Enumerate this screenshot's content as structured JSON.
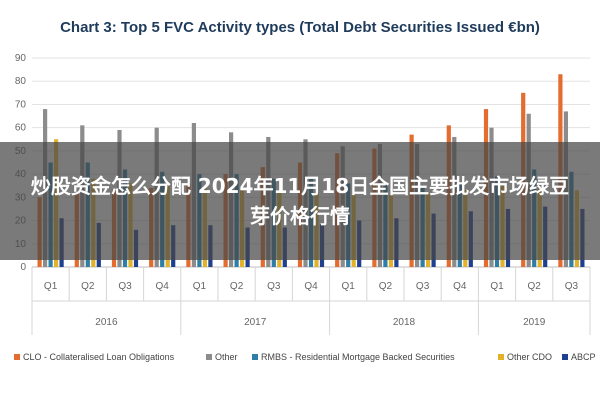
{
  "chart_data": {
    "type": "bar",
    "title": "Chart 3: Top 5 FVC Activity types (Total Debt Securities Issued €bn)",
    "ylim": [
      0,
      90
    ],
    "yticks": [
      0,
      10,
      20,
      30,
      40,
      50,
      60,
      70,
      80,
      90
    ],
    "categories": [
      "Q1",
      "Q2",
      "Q3",
      "Q4",
      "Q1",
      "Q2",
      "Q3",
      "Q4",
      "Q1",
      "Q2",
      "Q3",
      "Q4",
      "Q1",
      "Q2",
      "Q3"
    ],
    "years": [
      {
        "label": "2016",
        "count": 4
      },
      {
        "label": "2017",
        "count": 4
      },
      {
        "label": "2018",
        "count": 4
      },
      {
        "label": "2019",
        "count": 3
      }
    ],
    "series": [
      {
        "name": "CLO - Collateralised Loan Obligations",
        "color": "#e46c2e",
        "values": [
          30,
          32,
          33,
          34,
          36,
          40,
          43,
          45,
          49,
          51,
          57,
          61,
          68,
          75,
          83
        ]
      },
      {
        "name": "Other",
        "color": "#8c8c8c",
        "values": [
          68,
          61,
          59,
          60,
          62,
          58,
          56,
          55,
          52,
          53,
          53,
          56,
          60,
          66,
          67
        ]
      },
      {
        "name": "RMBS - Residential Mortgage Backed Securities",
        "color": "#2e7ea6",
        "values": [
          45,
          45,
          42,
          41,
          40,
          40,
          38,
          38,
          36,
          36,
          35,
          36,
          39,
          42,
          41
        ]
      },
      {
        "name": "Other CDO",
        "color": "#e2b22b",
        "values": [
          55,
          38,
          36,
          35,
          34,
          33,
          33,
          32,
          31,
          31,
          32,
          33,
          35,
          34,
          33
        ]
      },
      {
        "name": "ABCP",
        "color": "#1f3f8f",
        "values": [
          21,
          19,
          16,
          18,
          18,
          17,
          17,
          19,
          20,
          21,
          23,
          24,
          25,
          26,
          25
        ]
      }
    ]
  },
  "overlay": {
    "text": "炒股资金怎么分配 2024年11月18日全国主要批发市场绿豆芽价格行情"
  }
}
